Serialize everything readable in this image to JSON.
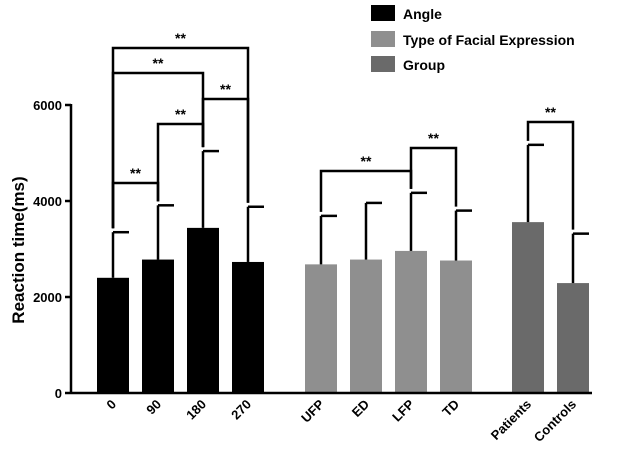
{
  "chart_data": {
    "type": "bar",
    "ylabel": "Reaction time(ms)",
    "ylim": [
      0,
      6000
    ],
    "yticks": [
      0,
      2000,
      4000,
      6000
    ],
    "grid": false,
    "legend_position": "top-right",
    "colors": {
      "Angle": "#000000",
      "Type of Facial Expression": "#8f8f8f",
      "Group": "#6a6a6a"
    },
    "legend": [
      {
        "name": "Angle"
      },
      {
        "name": "Type of Facial Expression"
      },
      {
        "name": "Group"
      }
    ],
    "groups": [
      {
        "name": "Angle",
        "categories": [
          "0",
          "90",
          "180",
          "270"
        ],
        "values": [
          2400,
          2780,
          3440,
          2730
        ],
        "errors": [
          950,
          1130,
          1600,
          1150
        ]
      },
      {
        "name": "Type of Facial Expression",
        "categories": [
          "UFP",
          "ED",
          "LFP",
          "TD"
        ],
        "values": [
          2680,
          2780,
          2960,
          2760
        ],
        "errors": [
          1010,
          1180,
          1210,
          1040
        ]
      },
      {
        "name": "Group",
        "categories": [
          "Patients",
          "Controls"
        ],
        "values": [
          3560,
          2290
        ],
        "errors": [
          1610,
          1030
        ]
      }
    ],
    "significance": [
      {
        "from": "0",
        "to": "90",
        "label": "**"
      },
      {
        "from": "90",
        "to": "180",
        "label": "**"
      },
      {
        "from": "180",
        "to": "270",
        "label": "**"
      },
      {
        "from": "0",
        "to": "180",
        "label": "**"
      },
      {
        "from": "0",
        "to": "270",
        "label": "**"
      },
      {
        "from": "UFP",
        "to": "LFP",
        "label": "**"
      },
      {
        "from": "LFP",
        "to": "TD",
        "label": "**"
      },
      {
        "from": "Patients",
        "to": "Controls",
        "label": "**"
      }
    ]
  }
}
